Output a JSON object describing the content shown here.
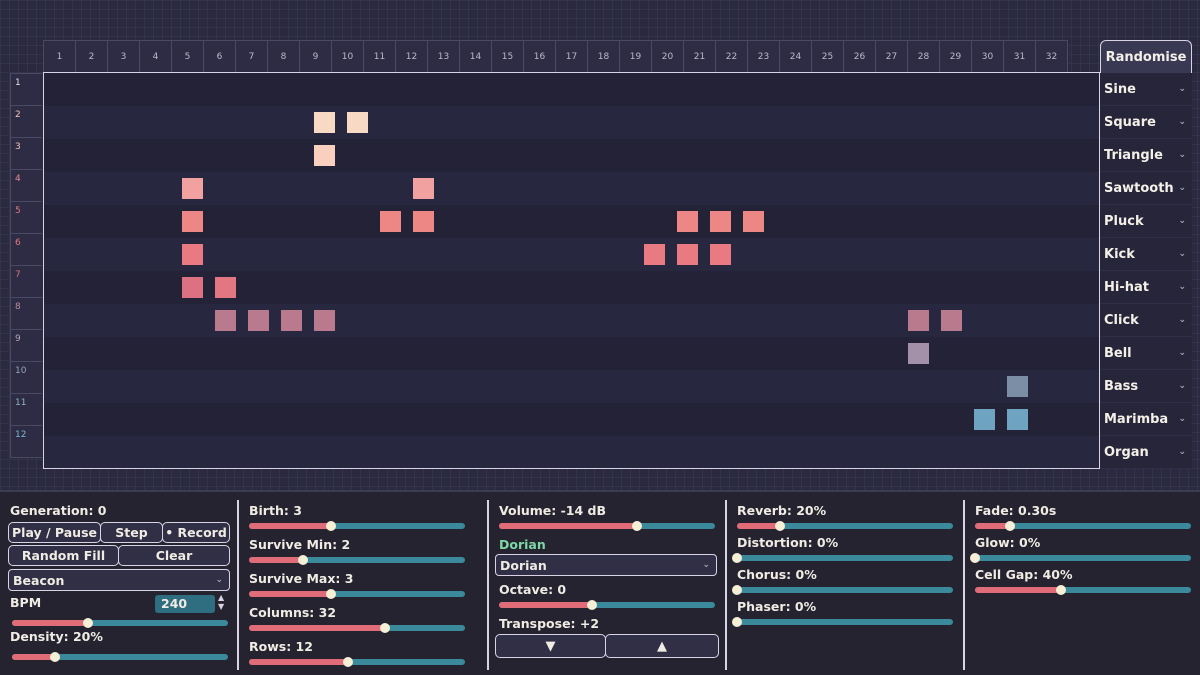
{
  "grid": {
    "columns": [
      "1",
      "2",
      "3",
      "4",
      "5",
      "6",
      "7",
      "8",
      "9",
      "10",
      "11",
      "12",
      "13",
      "14",
      "15",
      "16",
      "17",
      "18",
      "19",
      "20",
      "21",
      "22",
      "23",
      "24",
      "25",
      "26",
      "27",
      "28",
      "29",
      "30",
      "31",
      "32"
    ],
    "rows": [
      "1",
      "2",
      "3",
      "4",
      "5",
      "6",
      "7",
      "8",
      "9",
      "10",
      "11",
      "12"
    ],
    "row_colors": [
      "#e6e0ec",
      "#f1c7b9",
      "#f1c7b9",
      "#e88a8f",
      "#e4777e",
      "#e4777e",
      "#d86e80",
      "#b98c9e",
      "#b2a2b8",
      "#94a4b8",
      "#8fb3c6",
      "#79b7d0"
    ],
    "active_cells": [
      {
        "row": 2,
        "col": 9,
        "color": "#f8d9c3"
      },
      {
        "row": 2,
        "col": 10,
        "color": "#f8d9c3"
      },
      {
        "row": 3,
        "col": 9,
        "color": "#f8d0bd"
      },
      {
        "row": 4,
        "col": 5,
        "color": "#f0a1a0"
      },
      {
        "row": 4,
        "col": 12,
        "color": "#f0a1a0"
      },
      {
        "row": 5,
        "col": 5,
        "color": "#ec8786"
      },
      {
        "row": 5,
        "col": 11,
        "color": "#ec8786"
      },
      {
        "row": 5,
        "col": 12,
        "color": "#ec8786"
      },
      {
        "row": 5,
        "col": 20,
        "color": "#ec8786"
      },
      {
        "row": 5,
        "col": 21,
        "color": "#ec8786"
      },
      {
        "row": 5,
        "col": 22,
        "color": "#ec8786"
      },
      {
        "row": 6,
        "col": 5,
        "color": "#e97a82"
      },
      {
        "row": 6,
        "col": 19,
        "color": "#e97a82"
      },
      {
        "row": 6,
        "col": 20,
        "color": "#e97a82"
      },
      {
        "row": 6,
        "col": 21,
        "color": "#e97a82"
      },
      {
        "row": 7,
        "col": 5,
        "color": "#dc7182"
      },
      {
        "row": 7,
        "col": 6,
        "color": "#e27782"
      },
      {
        "row": 8,
        "col": 6,
        "color": "#b87a8c"
      },
      {
        "row": 8,
        "col": 7,
        "color": "#b87a8c"
      },
      {
        "row": 8,
        "col": 8,
        "color": "#b87a8c"
      },
      {
        "row": 8,
        "col": 9,
        "color": "#b87a8c"
      },
      {
        "row": 8,
        "col": 27,
        "color": "#b87a8c"
      },
      {
        "row": 8,
        "col": 28,
        "color": "#b87a8c"
      },
      {
        "row": 9,
        "col": 27,
        "color": "#a291a8"
      },
      {
        "row": 10,
        "col": 30,
        "color": "#7b8ea6"
      },
      {
        "row": 11,
        "col": 29,
        "color": "#6ea3c2"
      },
      {
        "row": 11,
        "col": 30,
        "color": "#6ea3c2"
      }
    ]
  },
  "randomise_label": "Randomise",
  "voices": [
    "Sine",
    "Square",
    "Triangle",
    "Sawtooth",
    "Pluck",
    "Kick",
    "Hi-hat",
    "Click",
    "Bell",
    "Bass",
    "Marimba",
    "Organ"
  ],
  "sim": {
    "generation": "Generation: 0",
    "play_pause": "Play / Pause",
    "step": "Step",
    "record": "• Record",
    "random_fill": "Random Fill",
    "clear": "Clear",
    "pattern": "Beacon",
    "bpm_label": "BPM",
    "bpm_value": "240",
    "bpm_level": 0.35,
    "density_label": "Density: 20%",
    "density_level": 0.2
  },
  "rules": {
    "birth_label": "Birth: 3",
    "birth_level": 0.38,
    "survive_min_label": "Survive Min: 2",
    "survive_min_level": 0.25,
    "survive_max_label": "Survive Max: 3",
    "survive_max_level": 0.38,
    "columns_label": "Columns: 32",
    "columns_level": 0.63,
    "rows_label": "Rows: 12",
    "rows_level": 0.46
  },
  "audio": {
    "volume_label": "Volume: -14 dB",
    "volume_level": 0.64,
    "scale_label": "Dorian",
    "scale_value": "Dorian",
    "octave_label": "Octave: 0",
    "octave_level": 0.43,
    "transpose_label": "Transpose: +2",
    "down_arrow": "▼",
    "up_arrow": "▲"
  },
  "effects": {
    "reverb_label": "Reverb: 20%",
    "reverb_level": 0.2,
    "distortion_label": "Distortion: 0%",
    "distortion_level": 0,
    "chorus_label": "Chorus: 0%",
    "chorus_level": 0,
    "phaser_label": "Phaser: 0%",
    "phaser_level": 0
  },
  "visuals": {
    "fade_label": "Fade: 0.30s",
    "fade_level": 0.16,
    "glow_label": "Glow: 0%",
    "glow_level": 0,
    "cell_gap_label": "Cell Gap: 40%",
    "cell_gap_level": 0.4
  },
  "colors": {
    "accent_fill": "#e06c78",
    "accent_track": "#3a8a9c",
    "scale_text": "#7fd6a6"
  }
}
